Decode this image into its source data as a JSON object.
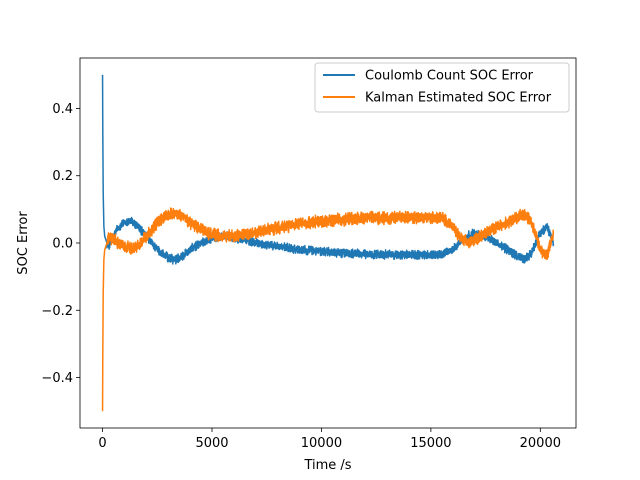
{
  "chart_data": {
    "type": "line",
    "title": "",
    "xlabel": "Time /s",
    "ylabel": "SOC Error",
    "xlim": [
      -1030,
      21630
    ],
    "ylim": [
      -0.55,
      0.55
    ],
    "xticks": [
      0,
      5000,
      10000,
      15000,
      20000
    ],
    "xtick_labels": [
      "0",
      "5000",
      "10000",
      "15000",
      "20000"
    ],
    "yticks": [
      -0.4,
      -0.2,
      0.0,
      0.2,
      0.4
    ],
    "ytick_labels": [
      "−0.4",
      "−0.2",
      "0.0",
      "0.2",
      "0.4"
    ],
    "grid": false,
    "legend_position": "top-right",
    "series": [
      {
        "name": "Coulomb Count SOC Error",
        "color": "#1f77b4",
        "noise": 0.01,
        "x": [
          0,
          10,
          30,
          60,
          100,
          200,
          300,
          500,
          700,
          1000,
          1300,
          1600,
          2000,
          2500,
          3000,
          3300,
          3600,
          4000,
          4500,
          5000,
          5500,
          6000,
          6500,
          7000,
          8000,
          9000,
          10000,
          11000,
          12000,
          13000,
          14000,
          15000,
          15500,
          16000,
          16300,
          16700,
          17000,
          17500,
          18000,
          18500,
          19000,
          19300,
          19600,
          20000,
          20300,
          20600
        ],
        "y": [
          0.5,
          0.35,
          0.15,
          0.05,
          0.02,
          0.0,
          -0.01,
          0.02,
          0.045,
          0.06,
          0.065,
          0.05,
          0.02,
          -0.02,
          -0.045,
          -0.05,
          -0.04,
          -0.02,
          0.0,
          0.015,
          0.02,
          0.015,
          0.01,
          0.0,
          -0.01,
          -0.02,
          -0.025,
          -0.03,
          -0.033,
          -0.035,
          -0.035,
          -0.035,
          -0.035,
          -0.02,
          0.0,
          0.02,
          0.03,
          0.02,
          0.0,
          -0.02,
          -0.04,
          -0.05,
          -0.03,
          0.03,
          0.05,
          0.0
        ]
      },
      {
        "name": "Kalman Estimated SOC Error",
        "color": "#ff7f0e",
        "noise": 0.014,
        "x": [
          0,
          10,
          30,
          60,
          100,
          200,
          300,
          500,
          700,
          1000,
          1300,
          1600,
          2000,
          2500,
          3000,
          3300,
          3600,
          4000,
          4500,
          5000,
          5500,
          6000,
          6500,
          7000,
          8000,
          9000,
          10000,
          11000,
          12000,
          13000,
          14000,
          15000,
          15500,
          16000,
          16300,
          16700,
          17000,
          17500,
          18000,
          18500,
          19000,
          19300,
          19600,
          20000,
          20300,
          20600
        ],
        "y": [
          -0.5,
          -0.35,
          -0.15,
          -0.05,
          -0.02,
          0.0,
          0.015,
          0.01,
          0.0,
          -0.01,
          -0.015,
          -0.01,
          0.02,
          0.06,
          0.085,
          0.09,
          0.08,
          0.06,
          0.04,
          0.025,
          0.02,
          0.02,
          0.025,
          0.03,
          0.045,
          0.055,
          0.065,
          0.07,
          0.075,
          0.075,
          0.075,
          0.075,
          0.075,
          0.05,
          0.02,
          0.0,
          0.01,
          0.03,
          0.045,
          0.06,
          0.08,
          0.085,
          0.06,
          -0.02,
          -0.04,
          0.03
        ]
      }
    ]
  }
}
